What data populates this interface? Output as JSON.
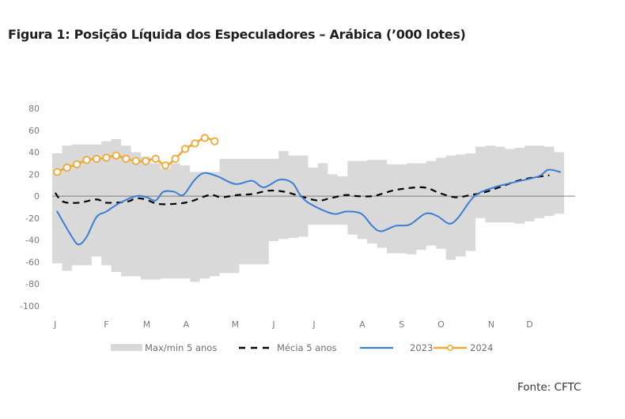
{
  "title": "Figura 1: Posição Líquida dos Especuladores – Arábica (’000 lotes)",
  "source": "Fonte: CFTC",
  "chart_data": {
    "type": "line",
    "title": "Figura 1: Posição Líquida dos Especuladores – Arábica (’000 lotes)",
    "xlabel": "",
    "ylabel": "",
    "x_unit": "week of year",
    "xlim": [
      0,
      52
    ],
    "ylim": [
      -100,
      80
    ],
    "yticks": [
      80,
      60,
      40,
      20,
      0,
      -20,
      -40,
      -60,
      -80,
      -100
    ],
    "ytick_labels": [
      "80",
      "60",
      "40",
      "20",
      "0",
      "-20",
      "-40",
      "-60",
      "-80",
      "-100"
    ],
    "xticks": [
      0.3,
      5.5,
      9.6,
      13.6,
      18.6,
      22.5,
      26.6,
      31.5,
      35.5,
      39.5,
      44.6,
      48.5
    ],
    "xtick_labels": [
      "J",
      "F",
      "M",
      "A",
      "M",
      "J",
      "J",
      "A",
      "S",
      "O",
      "N",
      "D"
    ],
    "grid": false,
    "zero_line": true,
    "legend_position": "bottom",
    "colors": {
      "band": "#d9d9d9",
      "avg": "#000000",
      "s2023": "#3a7fd5",
      "s2024": "#f0a832",
      "zero": "#808080"
    },
    "series": [
      {
        "name": "Max/min 5 anos",
        "kind": "band",
        "x": [
          0,
          1,
          2,
          3,
          4,
          5,
          6,
          7,
          8,
          9,
          10,
          11,
          12,
          13,
          14,
          15,
          16,
          17,
          18,
          19,
          20,
          21,
          22,
          23,
          24,
          25,
          26,
          27,
          28,
          29,
          30,
          31,
          32,
          33,
          34,
          35,
          36,
          37,
          38,
          39,
          40,
          41,
          42,
          43,
          44,
          45,
          46,
          47,
          48,
          49,
          50,
          51,
          52
        ],
        "upper": [
          39,
          46,
          47,
          47,
          47,
          50,
          52,
          46,
          40,
          36,
          30,
          25,
          30,
          28,
          22,
          22,
          22,
          34,
          34,
          34,
          34,
          34,
          34,
          41,
          37,
          37,
          26,
          30,
          20,
          18,
          32,
          32,
          33,
          33,
          29,
          29,
          30,
          30,
          32,
          35,
          37,
          38,
          39,
          45,
          46,
          45,
          43,
          44,
          46,
          46,
          45,
          40,
          39
        ],
        "lower": [
          -61,
          -68,
          -63,
          -63,
          -55,
          -63,
          -69,
          -73,
          -73,
          -76,
          -76,
          -75,
          -75,
          -75,
          -78,
          -75,
          -73,
          -70,
          -70,
          -62,
          -62,
          -62,
          -41,
          -39,
          -38,
          -37,
          -26,
          -26,
          -26,
          -26,
          -35,
          -39,
          -43,
          -47,
          -52,
          -52,
          -53,
          -49,
          -45,
          -48,
          -58,
          -55,
          -50,
          -20,
          -24,
          -24,
          -24,
          -25,
          -23,
          -20,
          -18,
          -16,
          -16
        ]
      },
      {
        "name": "Mécia 5 anos",
        "kind": "dashed",
        "x": [
          0.3,
          1.1,
          2.7,
          4.5,
          5.5,
          7.6,
          8.5,
          9.5,
          10.7,
          12.5,
          14,
          16,
          17.2,
          18.8,
          20.4,
          22,
          23.6,
          25.2,
          27,
          28.2,
          29.8,
          31,
          32.6,
          33.8,
          35.1,
          37.7,
          39.3,
          40.9,
          42.5,
          44.1,
          45.7,
          47.3,
          48.9,
          50.5
        ],
        "values": [
          3,
          -5,
          -6,
          -3,
          -6,
          -5,
          -2,
          -3,
          -7,
          -7,
          -5,
          1,
          -1,
          1,
          2,
          5,
          4,
          0,
          -4,
          -2,
          1,
          0,
          0,
          3,
          6,
          8,
          3,
          -1,
          1,
          4,
          9,
          14,
          17,
          19
        ]
      },
      {
        "name": "2023",
        "kind": "line",
        "x": [
          0.5,
          2,
          2.7,
          3.5,
          4.5,
          5.5,
          6.7,
          8.5,
          9.6,
          10.5,
          11.3,
          12.4,
          13.3,
          14.4,
          15.4,
          16.8,
          18.6,
          20.3,
          21.5,
          23.1,
          24.4,
          25.2,
          26.2,
          28.5,
          29.9,
          31.4,
          32.5,
          33.4,
          34.9,
          36.3,
          37.9,
          39.1,
          40.3,
          41.2,
          42.9,
          44.9,
          47.1,
          49.4,
          50.4,
          51.6
        ],
        "values": [
          -14,
          -37,
          -44,
          -37,
          -19,
          -14,
          -7,
          0,
          -1,
          -4,
          4,
          4,
          1,
          14,
          21,
          18,
          11,
          14,
          8,
          15,
          12,
          1,
          -7,
          -16,
          -14,
          -16,
          -27,
          -32,
          -27,
          -26,
          -16,
          -18,
          -25,
          -20,
          0,
          8,
          13,
          18,
          24,
          22
        ]
      },
      {
        "name": "2024",
        "kind": "line-marker",
        "x": [
          0.5,
          1.5,
          2.5,
          3.5,
          4.5,
          5.5,
          6.5,
          7.5,
          8.5,
          9.5,
          10.5,
          11.5,
          12.5,
          13.5,
          14.5,
          15.5,
          16.5
        ],
        "values": [
          22,
          26,
          29,
          33,
          34,
          35,
          37,
          34,
          32,
          32,
          34,
          28,
          34,
          43,
          48,
          53,
          50
        ]
      }
    ]
  },
  "legend": [
    {
      "label": "Max/min 5 anos",
      "kind": "band"
    },
    {
      "label": "Mécia 5 anos",
      "kind": "dashed"
    },
    {
      "label": "2023",
      "kind": "line"
    },
    {
      "label": "2024",
      "kind": "line-marker"
    }
  ]
}
